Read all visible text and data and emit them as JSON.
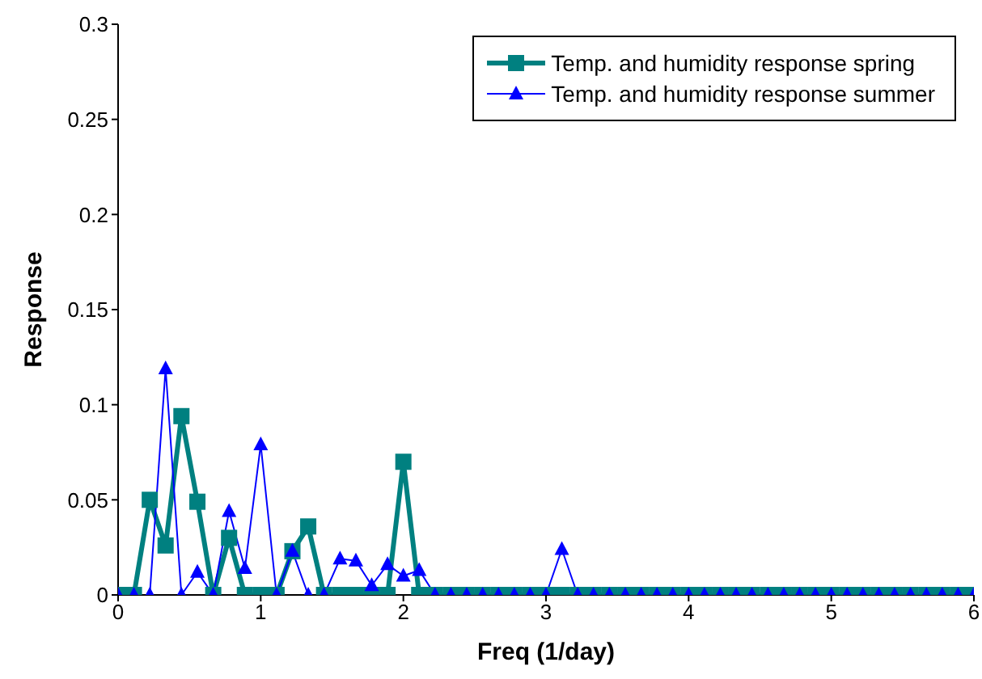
{
  "chart_data": {
    "type": "line",
    "xlabel": "Freq (1/day)",
    "ylabel": "Response",
    "x": [
      0,
      0.111,
      0.222,
      0.333,
      0.444,
      0.556,
      0.667,
      0.778,
      0.889,
      1,
      1.111,
      1.222,
      1.333,
      1.444,
      1.556,
      1.667,
      1.778,
      1.889,
      2,
      2.111,
      2.222,
      2.333,
      2.444,
      2.556,
      2.667,
      2.778,
      2.889,
      3,
      3.111,
      3.222,
      3.333,
      3.444,
      3.556,
      3.667,
      3.778,
      3.889,
      4,
      4.111,
      4.222,
      4.333,
      4.444,
      4.556,
      4.667,
      4.778,
      4.889,
      5,
      5.111,
      5.222,
      5.333,
      5.444,
      5.556,
      5.667,
      5.778,
      5.889,
      6
    ],
    "series": [
      {
        "name": "Temp. and humidity response spring",
        "color": "#008080",
        "marker": "square",
        "values": [
          0,
          0,
          0.05,
          0.026,
          0.094,
          0.049,
          0,
          0.03,
          0,
          0,
          0,
          0.023,
          0.036,
          0,
          0,
          0,
          0,
          0,
          0.07,
          0,
          0,
          0,
          0,
          0,
          0,
          0,
          0,
          0,
          0,
          0,
          0,
          0,
          0,
          0,
          0,
          0,
          0,
          0,
          0,
          0,
          0,
          0,
          0,
          0,
          0,
          0,
          0,
          0,
          0,
          0,
          0,
          0,
          0,
          0,
          0
        ]
      },
      {
        "name": "Temp. and humidity response summer",
        "color": "#0000ff",
        "marker": "triangle",
        "values": [
          0,
          0,
          0,
          0.119,
          0,
          0.012,
          0,
          0.044,
          0.014,
          0.079,
          0,
          0.023,
          0,
          0,
          0.019,
          0.018,
          0.005,
          0.016,
          0.01,
          0.013,
          0,
          0,
          0,
          0,
          0,
          0,
          0,
          0,
          0.024,
          0,
          0,
          0,
          0,
          0,
          0,
          0,
          0,
          0,
          0,
          0,
          0,
          0,
          0,
          0,
          0,
          0,
          0,
          0,
          0,
          0,
          0,
          0,
          0,
          0,
          0
        ]
      }
    ],
    "xlim": [
      0,
      6
    ],
    "xticks": [
      0,
      1,
      2,
      3,
      4,
      5,
      6
    ],
    "ylim": [
      0,
      0.3
    ],
    "yticks": [
      0,
      0.05,
      0.1,
      0.15,
      0.2,
      0.25,
      0.3
    ],
    "grid": false,
    "legend": "top right"
  }
}
